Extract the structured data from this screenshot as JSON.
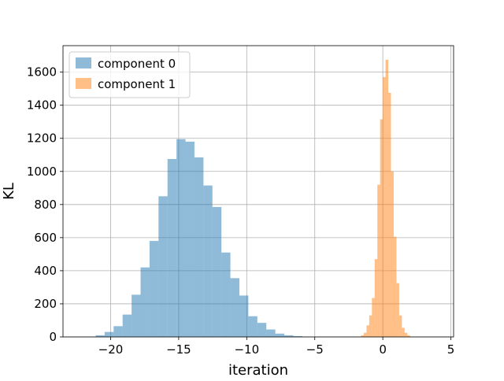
{
  "chart_data": {
    "type": "histogram",
    "xlabel": "iteration",
    "ylabel": "KL",
    "xlim": [
      -23.5,
      5.2
    ],
    "ylim": [
      0,
      1760
    ],
    "xticks": [
      -20,
      -15,
      -10,
      -5,
      0,
      5
    ],
    "yticks": [
      0,
      200,
      400,
      600,
      800,
      1000,
      1200,
      1400,
      1600
    ],
    "grid": true,
    "legend_position": "top-left",
    "series": [
      {
        "name": "component 0",
        "color": "#1f77b4",
        "opacity": 0.5,
        "bin_start": -21.1,
        "bin_width": 0.66,
        "counts": [
          10,
          30,
          65,
          135,
          255,
          420,
          580,
          850,
          1075,
          1195,
          1180,
          1085,
          915,
          785,
          510,
          355,
          250,
          125,
          85,
          45,
          20,
          10,
          5
        ]
      },
      {
        "name": "component 1",
        "color": "#ff7f0e",
        "opacity": 0.5,
        "bin_start": -1.6,
        "bin_width": 0.2,
        "counts": [
          10,
          25,
          70,
          130,
          235,
          470,
          920,
          1315,
          1570,
          1675,
          1475,
          1000,
          605,
          325,
          130,
          55,
          25,
          10
        ]
      }
    ]
  }
}
